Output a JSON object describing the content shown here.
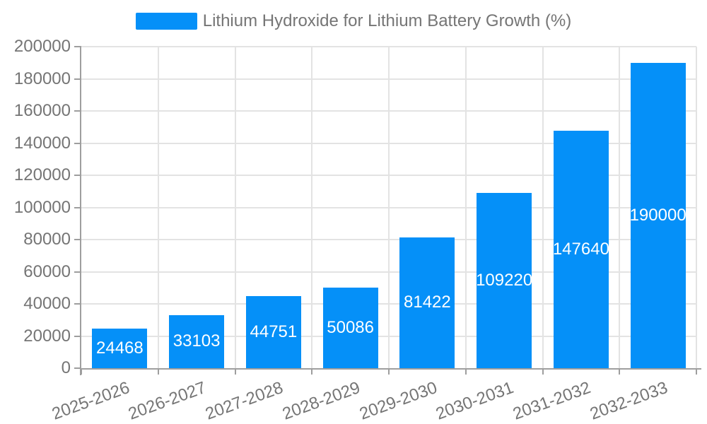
{
  "chart_data": {
    "type": "bar",
    "title": "",
    "legend": {
      "label": "Lithium Hydroxide for Lithium Battery Growth (%)",
      "position": "top"
    },
    "categories": [
      "2025-2026",
      "2026-2027",
      "2027-2028",
      "2028-2029",
      "2029-2030",
      "2030-2031",
      "2031-2032",
      "2032-2033"
    ],
    "values": [
      24468,
      33103,
      44751,
      50086,
      81422,
      109220,
      147640,
      190000
    ],
    "value_labels": [
      "24468",
      "33103",
      "44751",
      "50086",
      "81422",
      "109220",
      "147640",
      "190000"
    ],
    "xlabel": "",
    "ylabel": "",
    "ylim": [
      0,
      200000
    ],
    "yticks": [
      0,
      20000,
      40000,
      60000,
      80000,
      100000,
      120000,
      140000,
      160000,
      180000,
      200000
    ],
    "ytick_labels": [
      "0",
      "20000",
      "40000",
      "60000",
      "80000",
      "100000",
      "120000",
      "140000",
      "160000",
      "180000",
      "200000"
    ],
    "grid": true,
    "colors": {
      "bar": "#0590f8",
      "bar_label": "#ffffff",
      "axis_text": "#757575",
      "grid": "#e3e3e3",
      "axis_line": "#9e9e9e",
      "background": "#ffffff"
    }
  }
}
